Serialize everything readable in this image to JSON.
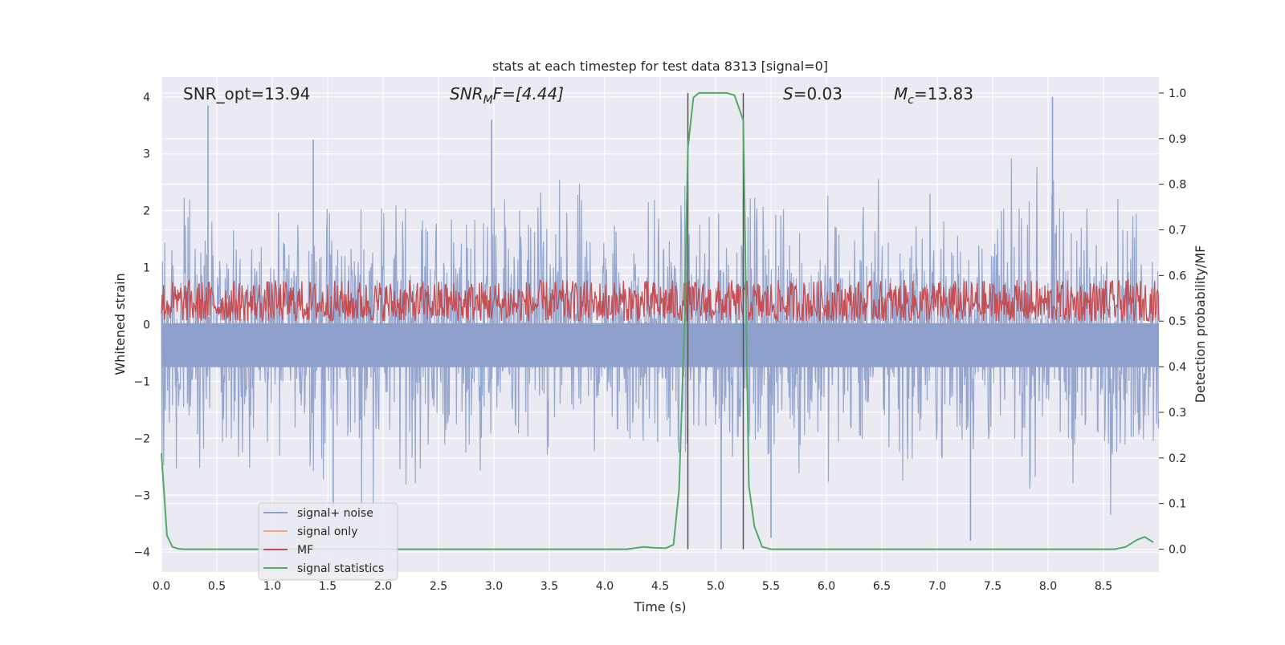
{
  "chart_data": {
    "type": "line",
    "title": "stats at each timestep for test data 8313 [signal=0]",
    "xlabel": "Time (s)",
    "ylabel_left": "Whitened strain",
    "ylabel_right": "Detection probability/MF",
    "xlim": [
      0.0,
      9.0
    ],
    "ylim_left": [
      -4.35,
      4.35
    ],
    "ylim_right": [
      -0.05,
      1.035
    ],
    "xticks": [
      "0.0",
      "0.5",
      "1.0",
      "1.5",
      "2.0",
      "2.5",
      "3.0",
      "3.5",
      "4.0",
      "4.5",
      "5.0",
      "5.5",
      "6.0",
      "6.5",
      "7.0",
      "7.5",
      "8.0",
      "8.5"
    ],
    "yticks_left": [
      "4",
      "3",
      "2",
      "1",
      "0",
      "−1",
      "−2",
      "−3",
      "−4"
    ],
    "yticks_right": [
      "1.0",
      "0.9",
      "0.8",
      "0.7",
      "0.6",
      "0.5",
      "0.4",
      "0.3",
      "0.2",
      "0.1",
      "0.0"
    ],
    "annotations": {
      "snr_opt": "SNR_opt=13.94",
      "snr_mf_base": "SNR",
      "snr_mf_sub": "M",
      "snr_mf_rest": "F=[4.44]",
      "s_sym": "S",
      "s_val": "=0.03",
      "mc_base": "M",
      "mc_sub": "c",
      "mc_val": "=13.83"
    },
    "vlines": [
      4.75,
      5.25
    ],
    "legend": {
      "placement": "lower-left",
      "entries": [
        "signal+ noise",
        "signal only",
        "MF",
        "signal statistics"
      ]
    },
    "series": [
      {
        "name": "signal+ noise",
        "color": "#8da0cb",
        "description": "whitened strain noise, roughly symmetric spikes within about -3.5 to 3.8",
        "envelope_peaks": [
          [
            0.42,
            3.85
          ],
          [
            1.37,
            3.25
          ],
          [
            2.98,
            3.6
          ],
          [
            8.04,
            4.0
          ],
          [
            5.05,
            -3.95
          ],
          [
            5.5,
            -3.75
          ],
          [
            7.3,
            -3.8
          ],
          [
            1.55,
            -3.2
          ]
        ]
      },
      {
        "name": "signal only",
        "color": "#e8a88c",
        "values": []
      },
      {
        "name": "MF",
        "color": "#c44e52",
        "description": "matched filter output, band roughly 0.5 to 0.58 on right axis",
        "range_right_axis": [
          0.5,
          0.59
        ]
      },
      {
        "name": "signal statistics",
        "color": "#55a868",
        "x": [
          0.0,
          0.05,
          0.1,
          0.15,
          0.2,
          0.3,
          1.0,
          2.0,
          3.0,
          4.0,
          4.2,
          4.35,
          4.45,
          4.55,
          4.62,
          4.67,
          4.72,
          4.75,
          4.8,
          4.85,
          4.9,
          5.0,
          5.1,
          5.17,
          5.25,
          5.3,
          5.35,
          5.42,
          5.5,
          6.0,
          7.0,
          8.0,
          8.6,
          8.7,
          8.8,
          8.87,
          8.95
        ],
        "values": [
          0.21,
          0.03,
          0.005,
          0.001,
          0.0,
          0.0,
          0.0,
          0.0,
          0.0,
          0.0,
          0.0,
          0.005,
          0.003,
          0.002,
          0.01,
          0.13,
          0.5,
          0.88,
          0.99,
          1.0,
          1.0,
          1.0,
          1.0,
          0.995,
          0.94,
          0.14,
          0.05,
          0.005,
          0.0,
          0.0,
          0.0,
          0.0,
          0.0,
          0.005,
          0.02,
          0.027,
          0.015
        ]
      }
    ]
  }
}
